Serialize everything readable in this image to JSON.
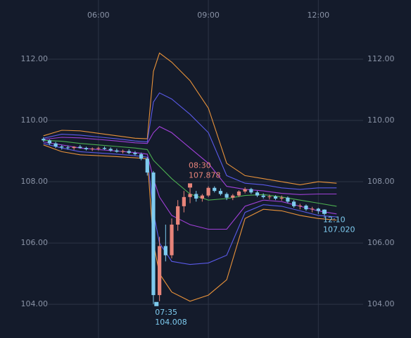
{
  "chart_data": {
    "type": "candlestick",
    "x": [
      "04:30",
      "04:40",
      "04:50",
      "05:00",
      "05:10",
      "05:20",
      "05:30",
      "05:40",
      "05:50",
      "06:00",
      "06:10",
      "06:20",
      "06:30",
      "06:40",
      "06:50",
      "07:00",
      "07:10",
      "07:20",
      "07:30",
      "07:40",
      "07:50",
      "08:00",
      "08:10",
      "08:20",
      "08:30",
      "08:40",
      "08:50",
      "09:00",
      "09:10",
      "09:20",
      "09:30",
      "09:40",
      "09:50",
      "10:00",
      "10:10",
      "10:20",
      "10:30",
      "10:40",
      "10:50",
      "11:00",
      "11:10",
      "11:20",
      "11:30",
      "11:40",
      "11:50",
      "12:00",
      "12:10"
    ],
    "open": [
      109.4,
      109.35,
      109.25,
      109.15,
      109.12,
      109.1,
      109.14,
      109.1,
      109.06,
      109.08,
      109.1,
      109.07,
      109.02,
      108.98,
      109.0,
      108.94,
      108.9,
      108.75,
      108.3,
      104.3,
      105.9,
      105.6,
      106.6,
      107.2,
      107.5,
      107.6,
      107.45,
      107.55,
      107.8,
      107.7,
      107.6,
      107.48,
      107.55,
      107.68,
      107.76,
      107.65,
      107.55,
      107.5,
      107.52,
      107.45,
      107.48,
      107.35,
      107.2,
      107.22,
      107.1,
      107.12,
      107.05
    ],
    "high": [
      109.45,
      109.38,
      109.3,
      109.2,
      109.18,
      109.16,
      109.2,
      109.14,
      109.12,
      109.14,
      109.15,
      109.12,
      109.08,
      109.05,
      109.06,
      109.0,
      108.95,
      108.8,
      108.35,
      106.2,
      106.6,
      106.8,
      107.4,
      107.7,
      107.878,
      107.7,
      107.6,
      107.85,
      107.85,
      107.78,
      107.65,
      107.6,
      107.72,
      107.82,
      107.8,
      107.7,
      107.62,
      107.58,
      107.56,
      107.55,
      107.52,
      107.4,
      107.28,
      107.26,
      107.18,
      107.15,
      107.1
    ],
    "low": [
      109.3,
      109.2,
      109.1,
      109.05,
      109.05,
      109.04,
      109.08,
      109.02,
      109.0,
      109.02,
      109.04,
      108.98,
      108.95,
      108.92,
      108.9,
      108.85,
      108.7,
      108.2,
      104.008,
      104.1,
      105.4,
      105.5,
      106.4,
      107.0,
      107.3,
      107.35,
      107.35,
      107.5,
      107.65,
      107.55,
      107.4,
      107.4,
      107.5,
      107.62,
      107.6,
      107.5,
      107.45,
      107.42,
      107.4,
      107.38,
      107.3,
      107.15,
      107.1,
      107.05,
      107.0,
      106.95,
      106.9
    ],
    "close": [
      109.35,
      109.25,
      109.15,
      109.12,
      109.1,
      109.14,
      109.1,
      109.06,
      109.08,
      109.1,
      109.07,
      109.02,
      108.98,
      109.0,
      108.94,
      108.9,
      108.75,
      108.3,
      104.3,
      105.9,
      105.6,
      106.6,
      107.2,
      107.5,
      107.6,
      107.45,
      107.55,
      107.8,
      107.7,
      107.6,
      107.48,
      107.55,
      107.68,
      107.76,
      107.65,
      107.55,
      107.5,
      107.52,
      107.45,
      107.48,
      107.35,
      107.2,
      107.22,
      107.1,
      107.12,
      107.05,
      107.02
    ],
    "up_color": "#e8847a",
    "down_color": "#7ecbef",
    "band_x": [
      "04:30",
      "05:00",
      "05:30",
      "06:00",
      "06:30",
      "07:00",
      "07:20",
      "07:30",
      "07:40",
      "08:00",
      "08:30",
      "09:00",
      "09:30",
      "10:00",
      "10:30",
      "11:00",
      "11:30",
      "12:00",
      "12:30"
    ],
    "bands": [
      {
        "color": "#e8923a",
        "values": [
          109.5,
          109.68,
          109.66,
          109.58,
          109.5,
          109.42,
          109.4,
          111.6,
          112.2,
          111.9,
          111.3,
          110.4,
          108.6,
          108.2,
          108.1,
          108.0,
          107.9,
          108.0,
          107.95
        ]
      },
      {
        "color": "#5a5ae8",
        "values": [
          109.42,
          109.55,
          109.52,
          109.46,
          109.4,
          109.33,
          109.3,
          110.6,
          110.9,
          110.7,
          110.2,
          109.6,
          108.2,
          107.95,
          107.9,
          107.8,
          107.75,
          107.8,
          107.8
        ]
      },
      {
        "color": "#a040d8",
        "values": [
          109.38,
          109.45,
          109.43,
          109.38,
          109.33,
          109.27,
          109.25,
          109.6,
          109.8,
          109.6,
          109.1,
          108.6,
          107.85,
          107.75,
          107.7,
          107.62,
          107.58,
          107.6,
          107.6
        ]
      },
      {
        "color": "#4caf50",
        "values": [
          109.35,
          109.32,
          109.25,
          109.2,
          109.15,
          109.1,
          109.05,
          108.7,
          108.5,
          108.1,
          107.6,
          107.4,
          107.45,
          107.55,
          107.58,
          107.5,
          107.4,
          107.3,
          107.2
        ]
      },
      {
        "color": "#a040d8",
        "values": [
          109.3,
          109.2,
          109.1,
          109.05,
          109.0,
          108.95,
          108.9,
          108.1,
          107.5,
          106.9,
          106.6,
          106.45,
          106.45,
          107.2,
          107.4,
          107.35,
          107.2,
          107.05,
          106.95
        ]
      },
      {
        "color": "#5a5ae8",
        "values": [
          109.25,
          109.1,
          108.98,
          108.94,
          108.9,
          108.85,
          108.8,
          107.0,
          106.0,
          105.4,
          105.3,
          105.35,
          105.6,
          107.0,
          107.25,
          107.2,
          107.05,
          106.9,
          106.85
        ]
      },
      {
        "color": "#e8923a",
        "values": [
          109.2,
          108.98,
          108.88,
          108.85,
          108.82,
          108.78,
          108.75,
          106.0,
          105.0,
          104.4,
          104.1,
          104.3,
          104.8,
          106.8,
          107.1,
          107.05,
          106.9,
          106.8,
          106.75
        ]
      }
    ],
    "annotations": [
      {
        "time": "07:35",
        "price": 104.008,
        "color": "#7ecbef",
        "position": "below"
      },
      {
        "time": "08:30",
        "price": 107.878,
        "color": "#e8847a",
        "position": "above"
      },
      {
        "time": "12:10",
        "price": {
          "value": 107.02,
          "label": "107.020"
        },
        "color": "#7ecbef",
        "position": "below"
      }
    ],
    "xlim": [
      "04:28",
      "13:18"
    ],
    "xticks": [
      "06:00",
      "09:00",
      "12:00"
    ],
    "ylim": [
      102.9,
      113.93
    ],
    "yticks": [
      {
        "value": 104,
        "label": "104.00"
      },
      {
        "value": 106,
        "label": "106.00"
      },
      {
        "value": 108,
        "label": "108.00"
      },
      {
        "value": 110,
        "label": "110.00"
      },
      {
        "value": 112,
        "label": "112.00"
      }
    ],
    "grid": true
  }
}
